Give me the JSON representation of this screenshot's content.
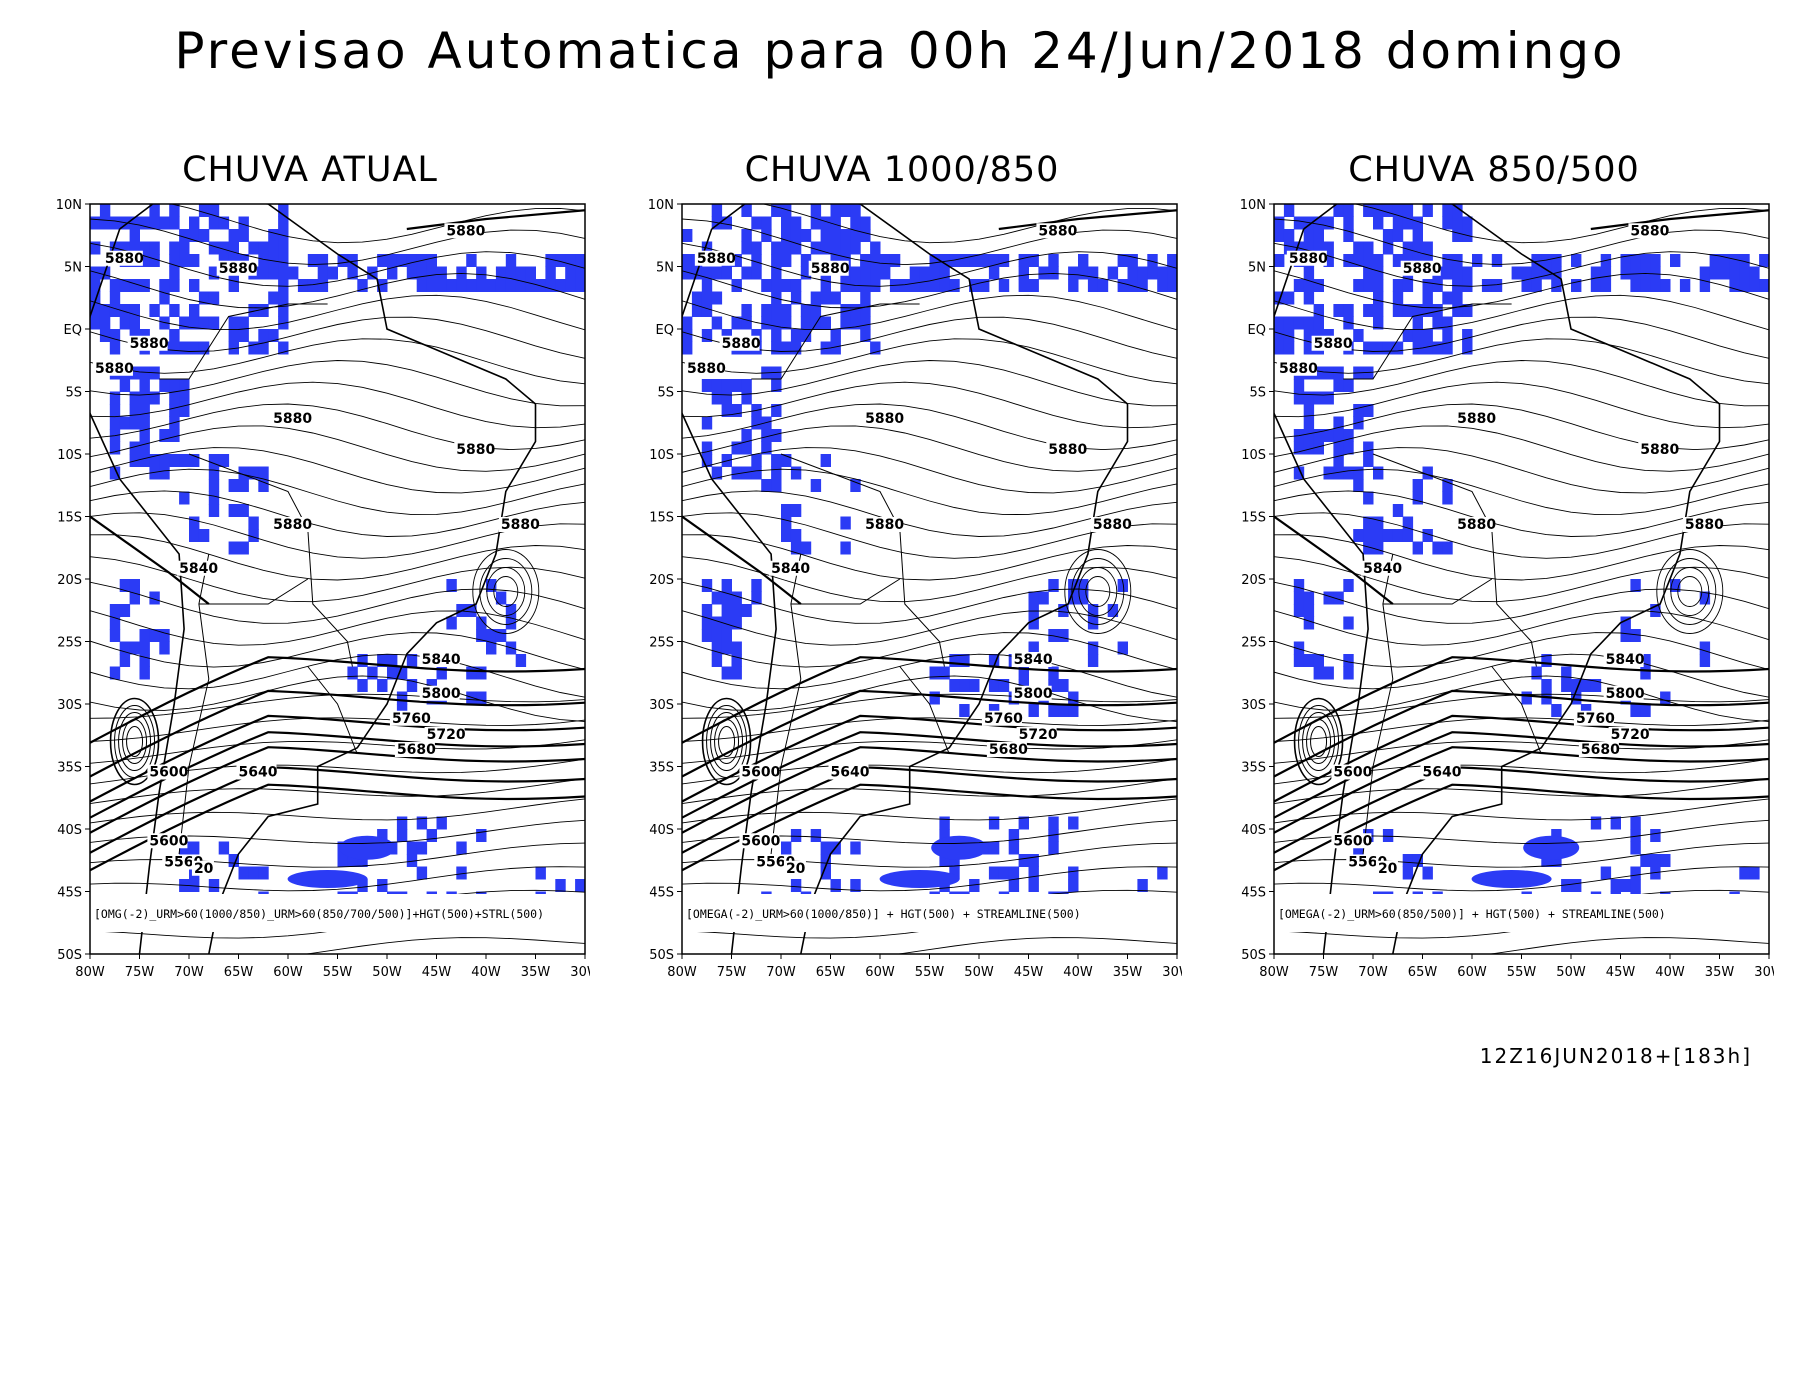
{
  "title": "Previsao Automatica para 00h 24/Jun/2018 domingo",
  "footer_stamp": "12Z16JUN2018+[183h]",
  "colors": {
    "rain": "#2b3bf5",
    "lines": "#000000",
    "background": "#ffffff"
  },
  "axes": {
    "lat_labels": [
      "10N",
      "5N",
      "EQ",
      "5S",
      "10S",
      "15S",
      "20S",
      "25S",
      "30S",
      "35S",
      "40S",
      "45S",
      "50S"
    ],
    "lon_labels": [
      "80W",
      "75W",
      "70W",
      "65W",
      "60W",
      "55W",
      "50W",
      "45W",
      "40W",
      "35W",
      "30W"
    ]
  },
  "panels": [
    {
      "title": "CHUVA ATUAL",
      "caption": "[OMG(-2)_URM>60(1000/850)_URM>60(850/700/500)]+HGT(500)+STRL(500)"
    },
    {
      "title": "CHUVA 1000/850",
      "caption": "[OMEGA(-2)_URM>60(1000/850)] + HGT(500) + STREAMLINE(500)"
    },
    {
      "title": "CHUVA 850/500",
      "caption": "[OMEGA(-2)_URM>60(850/500)] + HGT(500) + STREAMLINE(500)"
    }
  ],
  "contour_labels": [
    {
      "text": "5880",
      "lon": -44,
      "lat": 7.5
    },
    {
      "text": "5880",
      "lon": -78.5,
      "lat": 5.3
    },
    {
      "text": "5880",
      "lon": -67,
      "lat": 4.5
    },
    {
      "text": "5880",
      "lon": -76,
      "lat": -1.5
    },
    {
      "text": "5880",
      "lon": -79.5,
      "lat": -3.5
    },
    {
      "text": "5880",
      "lon": -61.5,
      "lat": -7.5
    },
    {
      "text": "5880",
      "lon": -43,
      "lat": -10
    },
    {
      "text": "5880",
      "lon": -61.5,
      "lat": -16
    },
    {
      "text": "5880",
      "lon": -38.5,
      "lat": -16
    },
    {
      "text": "5840",
      "lon": -71,
      "lat": -19.5
    },
    {
      "text": "5840",
      "lon": -46.5,
      "lat": -26.8
    },
    {
      "text": "5800",
      "lon": -46.5,
      "lat": -29.5
    },
    {
      "text": "5760",
      "lon": -49.5,
      "lat": -31.5
    },
    {
      "text": "5720",
      "lon": -46,
      "lat": -32.8
    },
    {
      "text": "5680",
      "lon": -49,
      "lat": -34
    },
    {
      "text": "5640",
      "lon": -65,
      "lat": -35.8
    },
    {
      "text": "5600",
      "lon": -74,
      "lat": -35.8
    },
    {
      "text": "5600",
      "lon": -74,
      "lat": -41.3
    },
    {
      "text": "5560",
      "lon": -72.5,
      "lat": -43
    },
    {
      "text": "20",
      "lon": -69.5,
      "lat": -43.5
    }
  ]
}
